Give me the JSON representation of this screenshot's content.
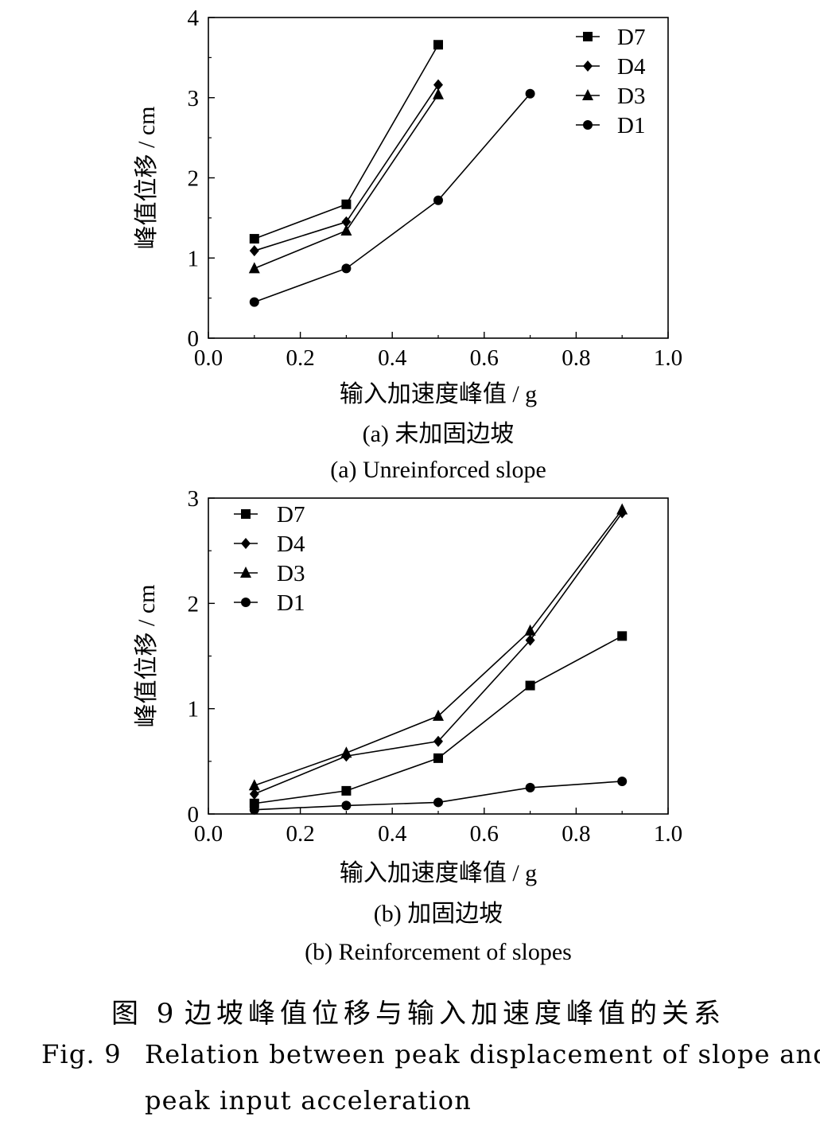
{
  "chart_data": [
    {
      "type": "line",
      "caption_zh": "(a) 未加固边坡",
      "caption_en": "(a) Unreinforced slope",
      "xlabel": "输入加速度峰值 / g",
      "ylabel": "峰值位移 / cm",
      "xlim": [
        0,
        1.0
      ],
      "ylim": [
        0,
        4
      ],
      "xticks": [
        "0.0",
        "0.2",
        "0.4",
        "0.6",
        "0.8",
        "1.0"
      ],
      "yticks": [
        "0",
        "1",
        "2",
        "3",
        "4"
      ],
      "grid": false,
      "legend_position": "top-right",
      "series": [
        {
          "name": "D7",
          "marker": "square",
          "x": [
            0.1,
            0.3,
            0.5
          ],
          "y": [
            1.24,
            1.67,
            3.66
          ]
        },
        {
          "name": "D4",
          "marker": "diamond",
          "x": [
            0.1,
            0.3,
            0.5
          ],
          "y": [
            1.09,
            1.45,
            3.16
          ]
        },
        {
          "name": "D3",
          "marker": "triangle",
          "x": [
            0.1,
            0.3,
            0.5
          ],
          "y": [
            0.87,
            1.34,
            3.04
          ]
        },
        {
          "name": "D1",
          "marker": "circle",
          "x": [
            0.1,
            0.3,
            0.5,
            0.7
          ],
          "y": [
            0.45,
            0.87,
            1.72,
            3.05
          ]
        }
      ]
    },
    {
      "type": "line",
      "caption_zh": "(b) 加固边坡",
      "caption_en": "(b) Reinforcement of slopes",
      "xlabel": "输入加速度峰值 / g",
      "ylabel": "峰值位移 / cm",
      "xlim": [
        0,
        1.0
      ],
      "ylim": [
        0,
        3
      ],
      "xticks": [
        "0.0",
        "0.2",
        "0.4",
        "0.6",
        "0.8",
        "1.0"
      ],
      "yticks": [
        "0",
        "1",
        "2",
        "3"
      ],
      "grid": false,
      "legend_position": "top-left",
      "series": [
        {
          "name": "D7",
          "marker": "square",
          "x": [
            0.1,
            0.3,
            0.5,
            0.7,
            0.9
          ],
          "y": [
            0.1,
            0.22,
            0.53,
            1.22,
            1.69
          ]
        },
        {
          "name": "D4",
          "marker": "diamond",
          "x": [
            0.1,
            0.3,
            0.5,
            0.7,
            0.9
          ],
          "y": [
            0.19,
            0.55,
            0.69,
            1.65,
            2.86
          ]
        },
        {
          "name": "D3",
          "marker": "triangle",
          "x": [
            0.1,
            0.3,
            0.5,
            0.7,
            0.9
          ],
          "y": [
            0.27,
            0.58,
            0.93,
            1.74,
            2.89
          ]
        },
        {
          "name": "D1",
          "marker": "circle",
          "x": [
            0.1,
            0.3,
            0.5,
            0.7,
            0.9
          ],
          "y": [
            0.04,
            0.08,
            0.11,
            0.25,
            0.31
          ]
        }
      ]
    }
  ],
  "figure": {
    "num_zh": "图 9",
    "title_zh": "边坡峰值位移与输入加速度峰值的关系",
    "num_en": "Fig. 9",
    "title_en_line1": "Relation between peak displacement of slope and",
    "title_en_line2": "peak input acceleration"
  }
}
